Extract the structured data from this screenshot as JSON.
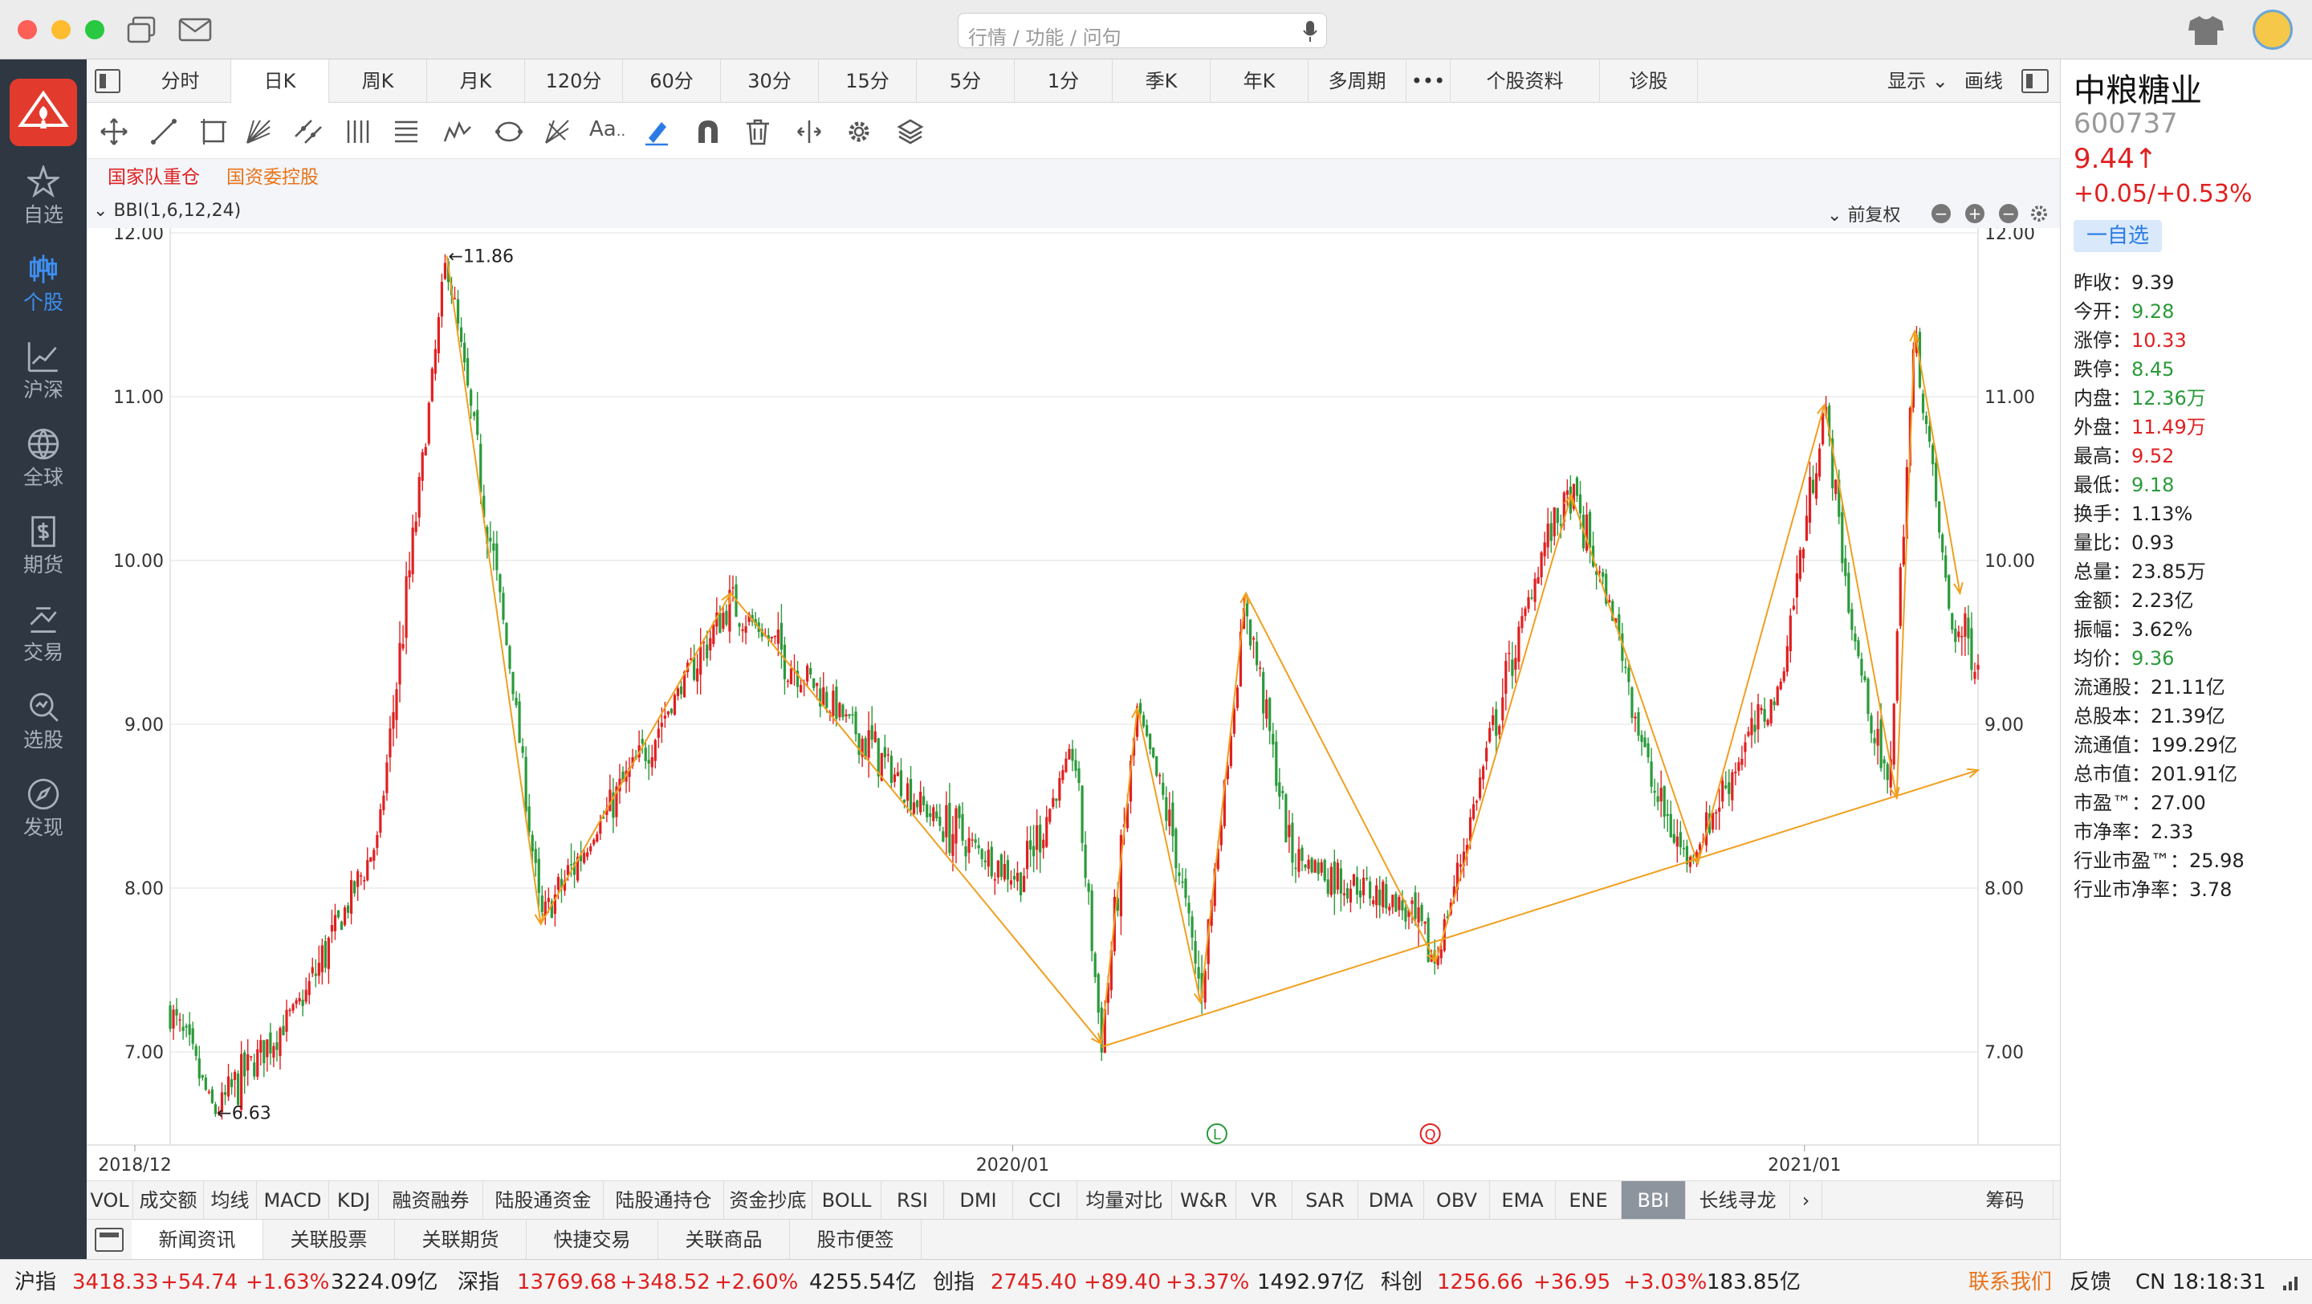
{
  "titlebar": {
    "search_placeholder": "行情 / 功能 / 问句"
  },
  "leftnav": {
    "items": [
      {
        "label": "自选",
        "icon": "star-icon"
      },
      {
        "label": "个股",
        "icon": "candlestick-icon",
        "active": true
      },
      {
        "label": "沪深",
        "icon": "trend-chart-icon"
      },
      {
        "label": "全球",
        "icon": "globe-icon"
      },
      {
        "label": "期货",
        "icon": "futures-icon"
      },
      {
        "label": "交易",
        "icon": "trade-icon"
      },
      {
        "label": "选股",
        "icon": "stock-picker-icon"
      },
      {
        "label": "发现",
        "icon": "compass-icon"
      }
    ]
  },
  "period_tabs": [
    "分时",
    "日K",
    "周K",
    "月K",
    "120分",
    "60分",
    "30分",
    "15分",
    "5分",
    "1分",
    "季K",
    "年K",
    "多周期",
    "•••",
    "个股资料",
    "诊股"
  ],
  "period_active": "日K",
  "period_right": {
    "display": "显示",
    "draw": "画线"
  },
  "tags": [
    {
      "label": "国家队重仓",
      "color": "#e02020"
    },
    {
      "label": "国资委控股",
      "color": "#e8731a"
    }
  ],
  "chart_header": {
    "indicator": "BBI(1,6,12,24)",
    "adjust": "前复权"
  },
  "indicator_tabs": [
    "VOL",
    "成交额",
    "均线",
    "MACD",
    "KDJ",
    "融资融券",
    "陆股通资金",
    "陆股通持仓",
    "资金抄底",
    "BOLL",
    "RSI",
    "DMI",
    "CCI",
    "均量对比",
    "W&R",
    "VR",
    "SAR",
    "DMA",
    "OBV",
    "EMA",
    "ENE",
    "BBI",
    "长线寻龙",
    "›",
    "筹码"
  ],
  "indicator_active": "BBI",
  "news_tabs": [
    "新闻资讯",
    "关联股票",
    "关联期货",
    "快捷交易",
    "关联商品",
    "股市便签"
  ],
  "stock": {
    "name": "中粮糖业",
    "code": "600737",
    "price": "9.44↑",
    "change": "+0.05/+0.53%",
    "watch_button": "一自选"
  },
  "quotes": [
    {
      "label": "昨收：",
      "value": "9.39",
      "color": "dark"
    },
    {
      "label": "今开：",
      "value": "9.28",
      "color": "green"
    },
    {
      "label": "涨停：",
      "value": "10.33",
      "color": "red"
    },
    {
      "label": "跌停：",
      "value": "8.45",
      "color": "green"
    },
    {
      "label": "内盘：",
      "value": "12.36万",
      "color": "green"
    },
    {
      "label": "外盘：",
      "value": "11.49万",
      "color": "red"
    },
    {
      "label": "最高：",
      "value": "9.52",
      "color": "red"
    },
    {
      "label": "最低：",
      "value": "9.18",
      "color": "green"
    },
    {
      "label": "换手：",
      "value": "1.13%",
      "color": "dark"
    },
    {
      "label": "量比：",
      "value": "0.93",
      "color": "dark"
    },
    {
      "label": "总量：",
      "value": "23.85万",
      "color": "dark"
    },
    {
      "label": "金额：",
      "value": "2.23亿",
      "color": "dark"
    },
    {
      "label": "振幅：",
      "value": "3.62%",
      "color": "dark"
    },
    {
      "label": "均价：",
      "value": "9.36",
      "color": "green"
    },
    {
      "label": "流通股：",
      "value": "21.11亿",
      "color": "dark"
    },
    {
      "label": "总股本：",
      "value": "21.39亿",
      "color": "dark"
    },
    {
      "label": "流通值：",
      "value": "199.29亿",
      "color": "dark"
    },
    {
      "label": "总市值：",
      "value": "201.91亿",
      "color": "dark"
    },
    {
      "label": "市盈™：",
      "value": "27.00",
      "color": "dark"
    },
    {
      "label": "市净率：",
      "value": "2.33",
      "color": "dark"
    },
    {
      "label": "行业市盈™：",
      "value": "25.98",
      "color": "dark"
    },
    {
      "label": "行业市净率：",
      "value": "3.78",
      "color": "dark"
    }
  ],
  "statusbar": {
    "indices": [
      {
        "name": "沪指",
        "value": "3418.33",
        "change": "+54.74",
        "pct": "+1.63%",
        "amount": "3224.09亿"
      },
      {
        "name": "深指",
        "value": "13769.68",
        "change": "+348.52",
        "pct": "+2.60%",
        "amount": "4255.54亿"
      },
      {
        "name": "创指",
        "value": "2745.40",
        "change": "+89.40",
        "pct": "+3.37%",
        "amount": "1492.97亿"
      },
      {
        "name": "科创",
        "value": "1256.66",
        "change": "+36.95",
        "pct": "+3.03%",
        "amount": "183.85亿"
      }
    ],
    "contact": "联系我们",
    "feedback": "反馈",
    "clock": "CN 18:18:31"
  },
  "colors": {
    "up": "#e02020",
    "down": "#2a9a3a",
    "trendline": "#f0a020",
    "nav_bg": "#2f3743"
  },
  "chart_data": {
    "type": "candlestick",
    "ylim": [
      6.5,
      12.0
    ],
    "y_ticks": [
      "12.00",
      "11.00",
      "10.00",
      "9.00",
      "8.00",
      "7.00"
    ],
    "x_labels": [
      {
        "label": "2018/12",
        "t": 0.0
      },
      {
        "label": "2020/01",
        "t": 0.466
      },
      {
        "label": "2021/01",
        "t": 0.904
      }
    ],
    "annotations": [
      {
        "label": "←11.86",
        "t": 0.153,
        "y": 11.86
      },
      {
        "label": "←6.63",
        "t": 0.025,
        "y": 6.63
      }
    ],
    "markers": [
      {
        "label": "L",
        "t": 0.579,
        "color": "#2a9a3a"
      },
      {
        "label": "Q",
        "t": 0.697,
        "color": "#e02020"
      }
    ],
    "pivots": [
      {
        "t": 0.0,
        "y": 7.25
      },
      {
        "t": 0.025,
        "y": 6.63
      },
      {
        "t": 0.075,
        "y": 7.35
      },
      {
        "t": 0.115,
        "y": 8.3
      },
      {
        "t": 0.153,
        "y": 11.86
      },
      {
        "t": 0.19,
        "y": 9.2
      },
      {
        "t": 0.205,
        "y": 7.8
      },
      {
        "t": 0.26,
        "y": 8.8
      },
      {
        "t": 0.31,
        "y": 9.75
      },
      {
        "t": 0.36,
        "y": 9.2
      },
      {
        "t": 0.42,
        "y": 8.45
      },
      {
        "t": 0.47,
        "y": 8.05
      },
      {
        "t": 0.5,
        "y": 8.85
      },
      {
        "t": 0.515,
        "y": 7.05
      },
      {
        "t": 0.535,
        "y": 9.1
      },
      {
        "t": 0.555,
        "y": 8.3
      },
      {
        "t": 0.57,
        "y": 7.35
      },
      {
        "t": 0.595,
        "y": 9.75
      },
      {
        "t": 0.62,
        "y": 8.2
      },
      {
        "t": 0.68,
        "y": 7.9
      },
      {
        "t": 0.7,
        "y": 7.55
      },
      {
        "t": 0.73,
        "y": 8.9
      },
      {
        "t": 0.76,
        "y": 10.1
      },
      {
        "t": 0.775,
        "y": 10.4
      },
      {
        "t": 0.8,
        "y": 9.6
      },
      {
        "t": 0.82,
        "y": 8.6
      },
      {
        "t": 0.84,
        "y": 8.15
      },
      {
        "t": 0.87,
        "y": 8.85
      },
      {
        "t": 0.89,
        "y": 9.2
      },
      {
        "t": 0.915,
        "y": 10.95
      },
      {
        "t": 0.93,
        "y": 9.6
      },
      {
        "t": 0.95,
        "y": 8.55
      },
      {
        "t": 0.965,
        "y": 11.4
      },
      {
        "t": 0.985,
        "y": 9.6
      },
      {
        "t": 1.0,
        "y": 9.44
      }
    ],
    "trendlines": [
      [
        {
          "t": 0.153,
          "y": 11.86
        },
        {
          "t": 0.205,
          "y": 7.78
        }
      ],
      [
        {
          "t": 0.205,
          "y": 7.78
        },
        {
          "t": 0.31,
          "y": 9.8
        }
      ],
      [
        {
          "t": 0.31,
          "y": 9.8
        },
        {
          "t": 0.515,
          "y": 7.05
        }
      ],
      [
        {
          "t": 0.515,
          "y": 7.05
        },
        {
          "t": 0.535,
          "y": 9.1
        }
      ],
      [
        {
          "t": 0.535,
          "y": 9.1
        },
        {
          "t": 0.57,
          "y": 7.3
        }
      ],
      [
        {
          "t": 0.57,
          "y": 7.3
        },
        {
          "t": 0.595,
          "y": 9.8
        }
      ],
      [
        {
          "t": 0.595,
          "y": 9.8
        },
        {
          "t": 0.7,
          "y": 7.55
        }
      ],
      [
        {
          "t": 0.7,
          "y": 7.55
        },
        {
          "t": 0.775,
          "y": 10.4
        }
      ],
      [
        {
          "t": 0.775,
          "y": 10.4
        },
        {
          "t": 0.845,
          "y": 8.15
        }
      ],
      [
        {
          "t": 0.845,
          "y": 8.15
        },
        {
          "t": 0.915,
          "y": 10.95
        }
      ],
      [
        {
          "t": 0.915,
          "y": 10.95
        },
        {
          "t": 0.955,
          "y": 8.55
        }
      ],
      [
        {
          "t": 0.955,
          "y": 8.55
        },
        {
          "t": 0.965,
          "y": 11.4
        }
      ],
      [
        {
          "t": 0.965,
          "y": 11.4
        },
        {
          "t": 0.99,
          "y": 9.8
        }
      ],
      [
        {
          "t": 0.515,
          "y": 7.03
        },
        {
          "t": 1.0,
          "y": 8.72
        }
      ]
    ]
  }
}
